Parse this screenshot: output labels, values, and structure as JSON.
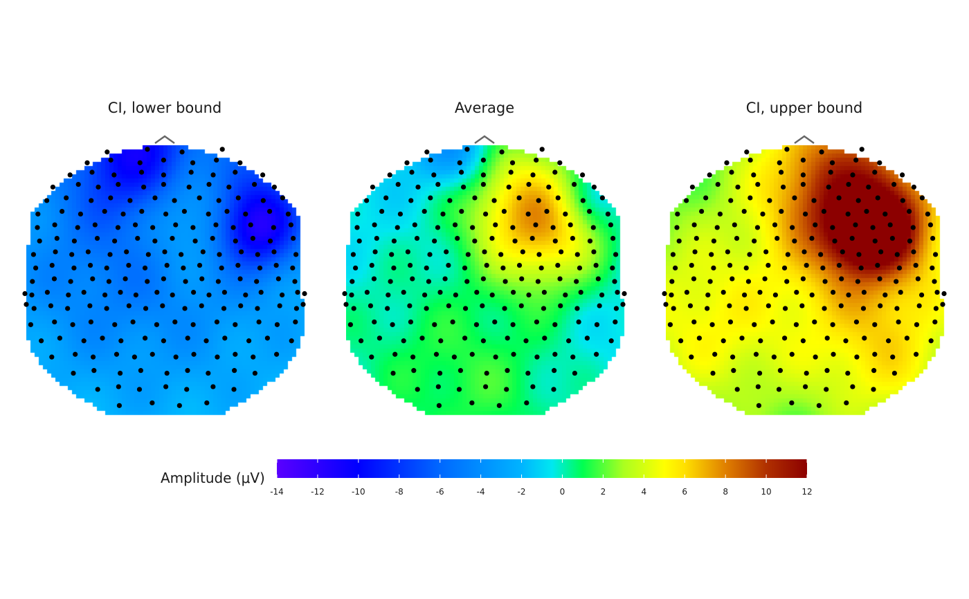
{
  "chart_data": {
    "type": "heatmap",
    "subtype": "scalp-topography",
    "panels": [
      {
        "title": "CI, lower bound",
        "hotspots": [
          {
            "x": 0.0,
            "y": 0.5,
            "r": 1.4,
            "amp": -4.0
          },
          {
            "x": -0.18,
            "y": 0.92,
            "r": 0.32,
            "amp": -7.0
          },
          {
            "x": 0.62,
            "y": 0.55,
            "r": 0.28,
            "amp": -5.5
          },
          {
            "x": 0.65,
            "y": 0.35,
            "r": 0.2,
            "amp": -5.0
          },
          {
            "x": 0.15,
            "y": 0.62,
            "r": 0.28,
            "amp": 3.2
          },
          {
            "x": 0.35,
            "y": 0.42,
            "r": 0.26,
            "amp": 2.5
          },
          {
            "x": -0.4,
            "y": 0.1,
            "r": 0.5,
            "amp": -1.5
          }
        ]
      },
      {
        "title": "Average",
        "hotspots": [
          {
            "x": 0.0,
            "y": 0.3,
            "r": 1.4,
            "amp": -1.5
          },
          {
            "x": 0.45,
            "y": 0.35,
            "r": 0.32,
            "amp": 6.5
          },
          {
            "x": 0.2,
            "y": 0.72,
            "r": 0.35,
            "amp": 4.5
          },
          {
            "x": -0.6,
            "y": -0.3,
            "r": 0.6,
            "amp": 1.2
          },
          {
            "x": 0.0,
            "y": -0.75,
            "r": 0.5,
            "amp": 2.0
          },
          {
            "x": -0.2,
            "y": 0.95,
            "r": 0.2,
            "amp": -4.0
          },
          {
            "x": 0.75,
            "y": 0.6,
            "r": 0.18,
            "amp": -2.0
          }
        ]
      },
      {
        "title": "CI, upper bound",
        "hotspots": [
          {
            "x": 0.0,
            "y": 0.2,
            "r": 1.5,
            "amp": 2.0
          },
          {
            "x": 0.5,
            "y": 0.4,
            "r": 0.45,
            "amp": 6.5
          },
          {
            "x": 0.48,
            "y": 0.38,
            "r": 0.18,
            "amp": 11.0
          },
          {
            "x": 0.2,
            "y": 0.8,
            "r": 0.4,
            "amp": 5.0
          },
          {
            "x": -0.3,
            "y": 0.2,
            "r": 0.35,
            "amp": -0.5
          },
          {
            "x": -0.7,
            "y": -0.3,
            "r": 0.5,
            "amp": 3.5
          },
          {
            "x": 0.6,
            "y": -0.6,
            "r": 0.4,
            "amp": 3.5
          }
        ]
      }
    ],
    "colorbar": {
      "title": "Amplitude (μV)",
      "min": -14,
      "max": 12,
      "ticks": [
        -14,
        -12,
        -10,
        -8,
        -6,
        -4,
        -2,
        0,
        2,
        4,
        6,
        8,
        10,
        12
      ],
      "colors": [
        {
          "v": -14,
          "c": "#5a00ff"
        },
        {
          "v": -10,
          "c": "#0000ff"
        },
        {
          "v": -6,
          "c": "#0068ff"
        },
        {
          "v": -2,
          "c": "#00b4ff"
        },
        {
          "v": -0.5,
          "c": "#00e8f0"
        },
        {
          "v": 1,
          "c": "#00ff50"
        },
        {
          "v": 3,
          "c": "#aaff20"
        },
        {
          "v": 5,
          "c": "#ffff00"
        },
        {
          "v": 6,
          "c": "#ffe000"
        },
        {
          "v": 8,
          "c": "#e08000"
        },
        {
          "v": 10,
          "c": "#b03000"
        },
        {
          "v": 12,
          "c": "#8c0000"
        }
      ]
    }
  }
}
